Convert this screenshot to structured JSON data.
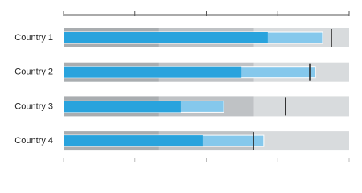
{
  "chart_data": {
    "type": "bullet",
    "categories": [
      "Country 1",
      "Country 2",
      "Country 3",
      "Country 4"
    ],
    "xlim": [
      0,
      100
    ],
    "xticks": [
      0,
      25,
      50,
      75,
      100
    ],
    "ranges": [
      {
        "value": 33.5,
        "color": "#a9adb0"
      },
      {
        "value": 66.7,
        "color": "#bfc2c5"
      },
      {
        "value": 100,
        "color": "#d8dbdd"
      }
    ],
    "series": [
      {
        "color": "#85c8ec",
        "values": [
          90.7,
          88.2,
          56.1,
          70.1
        ]
      },
      {
        "color": "#29a3dd",
        "values": [
          71.5,
          62.3,
          41.1,
          48.7
        ]
      }
    ],
    "targets": {
      "color": "#222222",
      "values": [
        93.8,
        86.2,
        77.7,
        66.5
      ]
    }
  }
}
